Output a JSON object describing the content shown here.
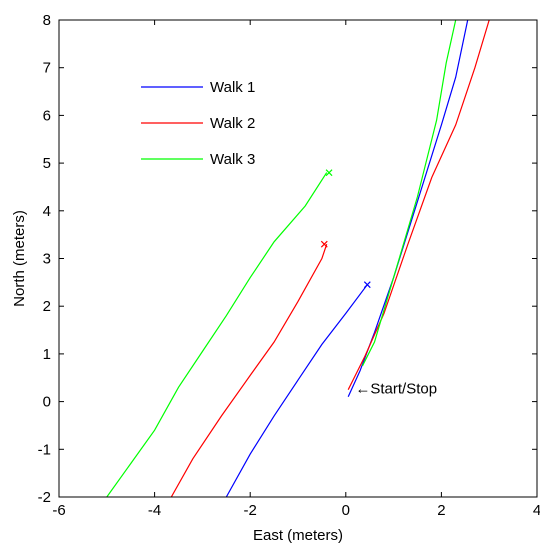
{
  "chart_data": {
    "type": "line",
    "xlabel": "East (meters)",
    "ylabel": "North (meters)",
    "xlim": [
      -6,
      4
    ],
    "ylim": [
      -2,
      8
    ],
    "xticks": [
      -6,
      -4,
      -2,
      0,
      2,
      4
    ],
    "yticks": [
      -2,
      -1,
      0,
      1,
      2,
      3,
      4,
      5,
      6,
      7,
      8
    ],
    "grid": false,
    "legend_position": "upper-left",
    "series": [
      {
        "name": "Walk 1",
        "color": "#0000ff",
        "points": [
          [
            -2.5,
            -2.0
          ],
          [
            -2.0,
            -1.1
          ],
          [
            -1.5,
            -0.3
          ],
          [
            -1.0,
            0.45
          ],
          [
            -0.5,
            1.2
          ],
          [
            0.0,
            1.85
          ],
          [
            0.45,
            2.45
          ]
        ],
        "return_points": [
          [
            0.05,
            0.1
          ],
          [
            0.3,
            0.65
          ],
          [
            0.6,
            1.45
          ],
          [
            1.0,
            2.6
          ],
          [
            1.5,
            4.2
          ],
          [
            2.0,
            5.8
          ],
          [
            2.3,
            6.8
          ],
          [
            2.55,
            8.0
          ]
        ],
        "end_marker": [
          0.45,
          2.45
        ]
      },
      {
        "name": "Walk 2",
        "color": "#ff0000",
        "points": [
          [
            -3.65,
            -2.0
          ],
          [
            -3.2,
            -1.2
          ],
          [
            -2.6,
            -0.3
          ],
          [
            -2.0,
            0.55
          ],
          [
            -1.5,
            1.25
          ],
          [
            -1.0,
            2.1
          ],
          [
            -0.5,
            3.0
          ],
          [
            -0.4,
            3.3
          ]
        ],
        "return_points": [
          [
            0.05,
            0.25
          ],
          [
            0.4,
            0.95
          ],
          [
            0.8,
            1.85
          ],
          [
            1.3,
            3.3
          ],
          [
            1.8,
            4.7
          ],
          [
            2.3,
            5.8
          ],
          [
            2.7,
            7.0
          ],
          [
            3.0,
            8.0
          ]
        ],
        "end_marker": [
          -0.45,
          3.3
        ]
      },
      {
        "name": "Walk 3",
        "color": "#00ff00",
        "points": [
          [
            -5.0,
            -2.0
          ],
          [
            -4.5,
            -1.3
          ],
          [
            -4.0,
            -0.6
          ],
          [
            -3.5,
            0.3
          ],
          [
            -3.0,
            1.05
          ],
          [
            -2.5,
            1.8
          ],
          [
            -2.0,
            2.6
          ],
          [
            -1.5,
            3.35
          ],
          [
            -0.85,
            4.1
          ],
          [
            -0.4,
            4.8
          ]
        ],
        "return_points": [
          [
            0.35,
            0.75
          ],
          [
            0.6,
            1.25
          ],
          [
            1.0,
            2.6
          ],
          [
            1.5,
            4.3
          ],
          [
            1.9,
            5.9
          ],
          [
            2.1,
            7.1
          ],
          [
            2.3,
            8.0
          ]
        ],
        "end_marker": [
          -0.35,
          4.8
        ]
      }
    ],
    "annotations": [
      {
        "text": "←Start/Stop",
        "x": 0.2,
        "y": 0.15
      }
    ]
  }
}
